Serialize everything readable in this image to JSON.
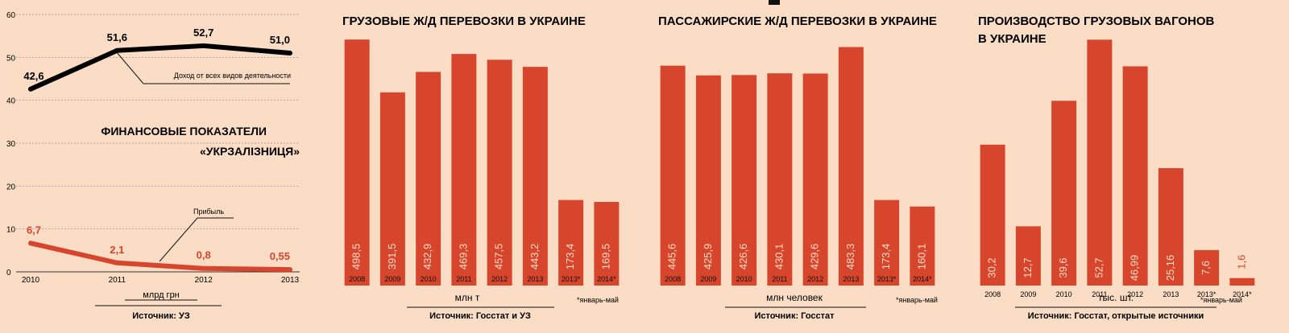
{
  "colors": {
    "background": "#fbdcc4",
    "bar": "#d6452c",
    "revenue_line": "#000000",
    "profit_line": "#d6452c",
    "grid": "#9a8a80"
  },
  "chart_data": [
    {
      "type": "line",
      "title": "ФИНАНСОВЫЕ ПОКАЗАТЕЛИ «УКРЗАЛІЗНИЦЯ»",
      "title_lines": [
        "ФИНАНСОВЫЕ ПОКАЗАТЕЛИ",
        "«УКРЗАЛІЗНИЦЯ»"
      ],
      "x": [
        "2010",
        "2011",
        "2012",
        "2013"
      ],
      "yticks": [
        "0",
        "10",
        "20",
        "30",
        "40",
        "50",
        "60"
      ],
      "ylim": [
        0,
        60
      ],
      "grid": true,
      "unit": "млрд грн",
      "source": "Источник: УЗ",
      "series": [
        {
          "name": "Доход от всех видов деятельности",
          "values": [
            42.6,
            51.6,
            52.7,
            51.0
          ],
          "labels": [
            "42,6",
            "51,6",
            "52,7",
            "51,0"
          ]
        },
        {
          "name": "Прибыль",
          "values": [
            6.7,
            2.1,
            0.8,
            0.55
          ],
          "labels": [
            "6,7",
            "2,1",
            "0,8",
            "0,55"
          ]
        }
      ]
    },
    {
      "type": "bar",
      "title": "ГРУЗОВЫЕ Ж/Д ПЕРЕВОЗКИ В УКРАИНЕ",
      "categories": [
        "2008",
        "2009",
        "2010",
        "2011",
        "2012",
        "2013",
        "2013*",
        "2014*"
      ],
      "values": [
        498.5,
        391.5,
        432.9,
        469.3,
        457.5,
        443.2,
        173.4,
        169.5
      ],
      "labels": [
        "498,5",
        "391,5",
        "432,9",
        "469,3",
        "457,5",
        "443,2",
        "173,4",
        "169,5"
      ],
      "ylim": [
        0,
        520
      ],
      "unit": "млн т",
      "footnote": "*январь-май",
      "source": "Источник: Госстат и УЗ"
    },
    {
      "type": "bar",
      "title": "ПАССАЖИРСКИЕ Ж/Д ПЕРЕВОЗКИ В УКРАИНЕ",
      "categories": [
        "2008",
        "2009",
        "2010",
        "2011",
        "2012",
        "2013",
        "2013*",
        "2014*"
      ],
      "values": [
        445.6,
        425.9,
        426.6,
        430.1,
        429.6,
        483.3,
        173.4,
        160.1
      ],
      "labels": [
        "445,6",
        "425,9",
        "426,6",
        "430,1",
        "429,6",
        "483,3",
        "173,4",
        "160,1"
      ],
      "ylim": [
        0,
        520
      ],
      "unit": "млн человек",
      "footnote": "*январь-май",
      "source": "Источник: Госстат"
    },
    {
      "type": "bar",
      "title": "ПРОИЗВОДСТВО ГРУЗОВЫХ ВАГОНОВ В УКРАИНЕ",
      "title_lines": [
        "ПРОИЗВОДСТВО ГРУЗОВЫХ ВАГОНОВ",
        "В УКРАИНЕ"
      ],
      "categories": [
        "2008",
        "2009",
        "2010",
        "2011",
        "2012",
        "2013",
        "2013*",
        "2014*"
      ],
      "values": [
        30.2,
        12.7,
        39.6,
        52.7,
        46.99,
        25.16,
        7.6,
        1.6
      ],
      "labels": [
        "30,2",
        "12,7",
        "39,6",
        "52,7",
        "46,99",
        "25,16",
        "7,6",
        "1,6"
      ],
      "ylim": [
        0,
        55
      ],
      "unit": "тыс. шт.",
      "footnote": "*январь-май",
      "source": "Источник: Госстат, открытые источники"
    }
  ]
}
